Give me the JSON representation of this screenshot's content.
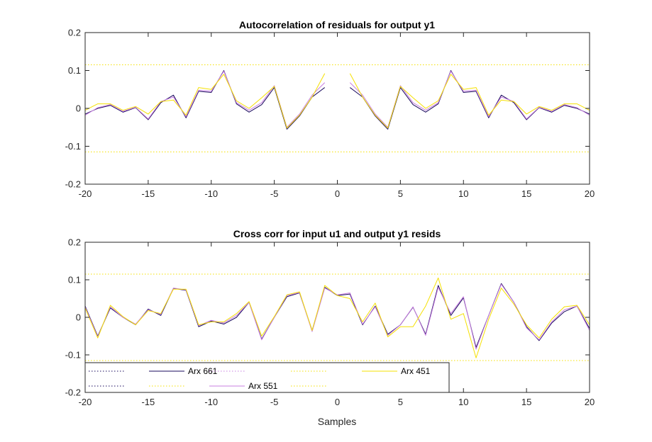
{
  "chart_data": [
    {
      "type": "line",
      "title": "Autocorrelation of residuals for output y1",
      "xlabel": "",
      "ylabel": "",
      "xlim": [
        -20,
        20
      ],
      "ylim": [
        -0.2,
        0.2
      ],
      "xticks": [
        -20,
        -15,
        -10,
        -5,
        0,
        5,
        10,
        15,
        20
      ],
      "yticks": [
        -0.2,
        -0.1,
        0,
        0.1,
        0.2
      ],
      "xtick_labels": [
        "-20",
        "-15",
        "-10",
        "-5",
        "0",
        "5",
        "10",
        "15",
        "20"
      ],
      "ytick_labels": [
        "-0.2",
        "-0.1",
        "0",
        "0.1",
        "0.2"
      ],
      "confidence_bound": 0.115,
      "x": [
        -20,
        -19,
        -18,
        -17,
        -16,
        -15,
        -14,
        -13,
        -12,
        -11,
        -10,
        -9,
        -8,
        -7,
        -6,
        -5,
        -4,
        -3,
        -2,
        -1,
        0,
        1,
        2,
        3,
        4,
        5,
        6,
        7,
        8,
        9,
        10,
        11,
        12,
        13,
        14,
        15,
        16,
        17,
        18,
        19,
        20
      ],
      "series": [
        {
          "name": "Arx 661",
          "color": "#1a0a5e",
          "values": [
            -0.015,
            0.0,
            0.008,
            -0.01,
            0.002,
            -0.03,
            0.015,
            0.035,
            -0.025,
            0.045,
            0.042,
            0.1,
            0.012,
            -0.01,
            0.01,
            0.055,
            -0.055,
            -0.02,
            0.03,
            0.055,
            null,
            0.055,
            0.03,
            -0.02,
            -0.055,
            0.055,
            0.01,
            -0.01,
            0.012,
            0.1,
            0.042,
            0.045,
            -0.025,
            0.035,
            0.015,
            -0.03,
            0.002,
            -0.01,
            0.008,
            0.0,
            -0.015
          ]
        },
        {
          "name": "Arx 551",
          "color": "#c87fe0",
          "values": [
            -0.018,
            0.002,
            0.01,
            -0.008,
            0.003,
            -0.028,
            0.018,
            0.03,
            -0.022,
            0.048,
            0.045,
            0.098,
            0.015,
            -0.005,
            0.015,
            0.06,
            -0.05,
            -0.015,
            0.035,
            0.068,
            null,
            0.068,
            0.035,
            -0.015,
            -0.05,
            0.06,
            0.015,
            -0.005,
            0.015,
            0.098,
            0.045,
            0.048,
            -0.022,
            0.03,
            0.018,
            -0.028,
            0.003,
            -0.008,
            0.01,
            0.002,
            -0.018
          ]
        },
        {
          "name": "Arx 451",
          "color": "#f5e000",
          "values": [
            -0.005,
            0.012,
            0.012,
            -0.005,
            0.005,
            -0.015,
            0.018,
            0.022,
            -0.018,
            0.055,
            0.05,
            0.09,
            0.02,
            0.0,
            0.028,
            0.058,
            -0.052,
            -0.018,
            0.03,
            0.092,
            null,
            0.092,
            0.03,
            -0.018,
            -0.052,
            0.058,
            0.028,
            0.0,
            0.02,
            0.09,
            0.05,
            0.055,
            -0.018,
            0.022,
            0.018,
            -0.015,
            0.005,
            -0.005,
            0.012,
            0.012,
            -0.005
          ]
        }
      ]
    },
    {
      "type": "line",
      "title": "Cross corr for input u1 and output y1 resids",
      "xlabel": "Samples",
      "ylabel": "",
      "xlim": [
        -20,
        20
      ],
      "ylim": [
        -0.2,
        0.2
      ],
      "xticks": [
        -20,
        -15,
        -10,
        -5,
        0,
        5,
        10,
        15,
        20
      ],
      "yticks": [
        -0.2,
        -0.1,
        0,
        0.1,
        0.2
      ],
      "xtick_labels": [
        "-20",
        "-15",
        "-10",
        "-5",
        "0",
        "5",
        "10",
        "15",
        "20"
      ],
      "ytick_labels": [
        "-0.2",
        "-0.1",
        "0",
        "0.1",
        "0.2"
      ],
      "confidence_bound": 0.115,
      "x": [
        -20,
        -19,
        -18,
        -17,
        -16,
        -15,
        -14,
        -13,
        -12,
        -11,
        -10,
        -9,
        -8,
        -7,
        -6,
        -5,
        -4,
        -3,
        -2,
        -1,
        0,
        1,
        2,
        3,
        4,
        5,
        6,
        7,
        8,
        9,
        10,
        11,
        12,
        13,
        14,
        15,
        16,
        17,
        18,
        19,
        20
      ],
      "series": [
        {
          "name": "Arx 661",
          "color": "#1a0a5e",
          "values": [
            0.03,
            -0.05,
            0.025,
            0.0,
            -0.02,
            0.022,
            0.005,
            0.077,
            0.072,
            -0.025,
            -0.01,
            -0.018,
            0.0,
            0.04,
            -0.058,
            0.0,
            0.055,
            0.065,
            -0.035,
            0.08,
            0.058,
            0.062,
            -0.02,
            0.03,
            -0.045,
            -0.02,
            0.027,
            -0.045,
            0.085,
            0.005,
            0.052,
            -0.08,
            0.005,
            0.09,
            0.04,
            -0.025,
            -0.062,
            -0.015,
            0.015,
            0.03,
            -0.03
          ]
        },
        {
          "name": "Arx 551",
          "color": "#c87fe0",
          "values": [
            0.028,
            -0.052,
            0.028,
            0.0,
            -0.018,
            0.02,
            0.008,
            0.078,
            0.073,
            -0.022,
            -0.008,
            -0.015,
            0.005,
            0.04,
            -0.06,
            0.0,
            0.058,
            0.066,
            -0.038,
            0.078,
            0.06,
            0.065,
            -0.018,
            0.028,
            -0.048,
            -0.02,
            0.028,
            -0.048,
            0.08,
            0.01,
            0.055,
            -0.085,
            0.005,
            0.088,
            0.04,
            -0.028,
            -0.06,
            -0.012,
            0.02,
            0.03,
            -0.035
          ]
        },
        {
          "name": "Arx 451",
          "color": "#f5e000",
          "values": [
            0.025,
            -0.055,
            0.032,
            0.002,
            -0.02,
            0.018,
            0.01,
            0.075,
            0.075,
            -0.02,
            -0.012,
            -0.012,
            0.01,
            0.042,
            -0.05,
            0.002,
            0.06,
            0.068,
            -0.035,
            0.085,
            0.058,
            0.05,
            -0.012,
            0.038,
            -0.052,
            -0.025,
            -0.025,
            0.03,
            0.105,
            -0.005,
            0.01,
            -0.108,
            -0.005,
            0.078,
            0.035,
            -0.02,
            -0.055,
            -0.005,
            0.028,
            0.032,
            -0.02
          ]
        }
      ]
    }
  ],
  "legend": {
    "placement": "bottom-left",
    "entries": [
      {
        "label": "",
        "color": "#1a0a5e",
        "style": "dotted"
      },
      {
        "label": "Arx 661",
        "color": "#1a0a5e",
        "style": "solid"
      },
      {
        "label": "",
        "color": "#c87fe0",
        "style": "dotted"
      },
      {
        "label": "",
        "color": "#f5e000",
        "style": "dotted"
      },
      {
        "label": "Arx 451",
        "color": "#f5e000",
        "style": "solid"
      },
      {
        "label": "",
        "color": "#1a0a5e",
        "style": "dotted"
      },
      {
        "label": "",
        "color": "#f5e000",
        "style": "dotted"
      },
      {
        "label": "Arx 551",
        "color": "#c87fe0",
        "style": "solid"
      },
      {
        "label": "",
        "color": "#f5e000",
        "style": "dotted"
      }
    ]
  },
  "colors": {
    "axis": "#262626",
    "confidence": "#f5e000"
  }
}
